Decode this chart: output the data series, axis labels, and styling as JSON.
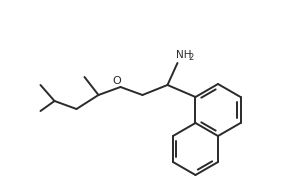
{
  "background_color": "#ffffff",
  "line_color": "#2a2a2a",
  "line_width": 1.4,
  "nh2_label": "NH",
  "nh2_sub": "2",
  "o_label": "O"
}
